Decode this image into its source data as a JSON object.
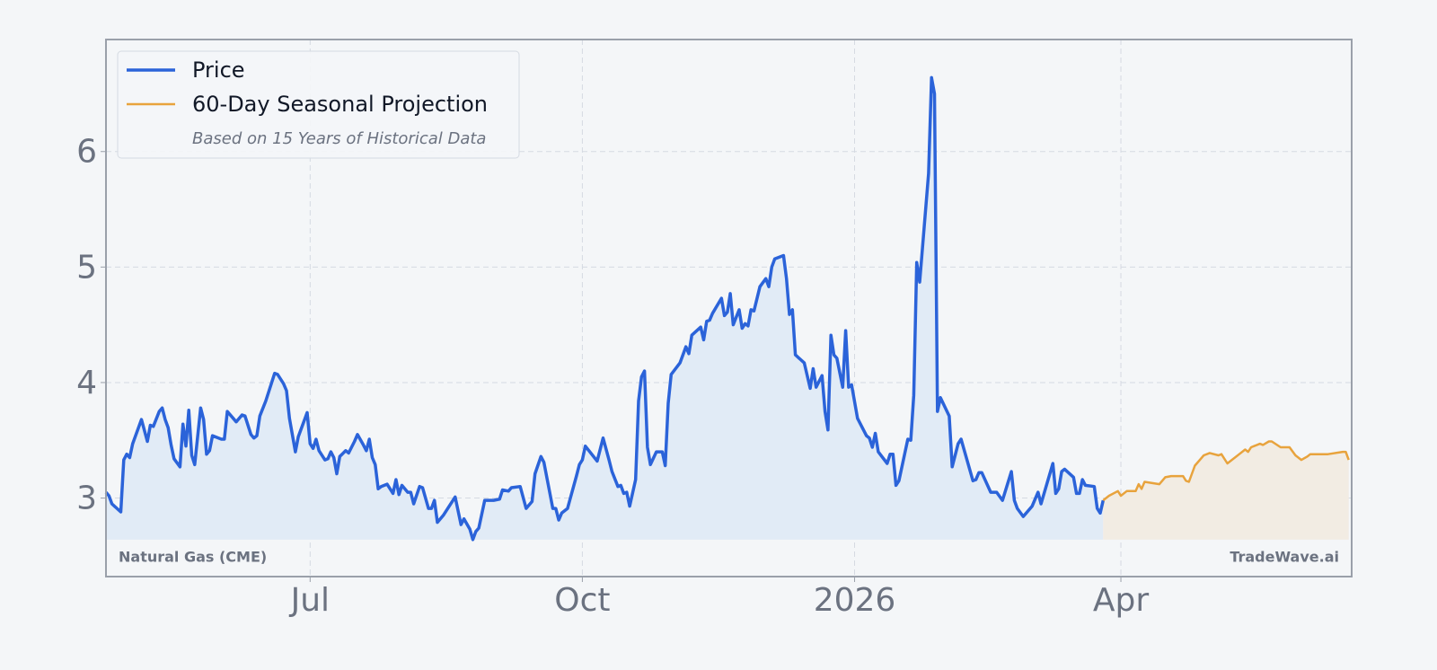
{
  "chart_data": {
    "type": "line",
    "annotations": {
      "left": "Natural Gas (CME)",
      "right": "TradeWave.ai"
    },
    "legend_note": "Based on 15 Years of Historical Data",
    "legend": "upper left",
    "grid": true,
    "xlim": [
      -69,
      352
    ],
    "xticks": [
      {
        "value": 0,
        "label": "Jul"
      },
      {
        "value": 92,
        "label": "Oct"
      },
      {
        "value": 184,
        "label": "2026"
      },
      {
        "value": 274,
        "label": "Apr"
      }
    ],
    "ylim": [
      2.32,
      6.97
    ],
    "yticks": [
      3,
      4,
      5,
      6
    ],
    "series": [
      {
        "name": "Price",
        "color": "#2b63d9",
        "fill": "#e1ebf6",
        "x": [
          -69,
          -68,
          -67,
          -64,
          -63,
          -62,
          -61,
          -60,
          -57,
          -55,
          -54,
          -53,
          -51,
          -50,
          -49,
          -48,
          -47,
          -46,
          -44,
          -43,
          -42,
          -41,
          -40,
          -39,
          -37,
          -36,
          -35,
          -34,
          -33,
          -30,
          -29,
          -28,
          -26,
          -25,
          -23,
          -22,
          -20,
          -19,
          -18,
          -17,
          -15,
          -12,
          -11,
          -9,
          -8,
          -7,
          -5,
          -4,
          -1,
          0,
          1,
          2,
          3,
          5,
          6,
          7,
          8,
          9,
          10,
          12,
          13,
          15,
          16,
          18,
          19,
          20,
          21,
          22,
          23,
          24,
          26,
          28,
          29,
          30,
          31,
          33,
          34,
          35,
          37,
          38,
          40,
          41,
          42,
          43,
          45,
          49,
          51,
          52,
          54,
          55,
          56,
          57,
          59,
          62,
          64,
          65,
          67,
          68,
          71,
          73,
          75,
          76,
          78,
          79,
          82,
          83,
          84,
          85,
          87,
          90,
          91,
          92,
          93,
          97,
          99,
          101,
          102,
          104,
          105,
          106,
          107,
          108,
          110,
          111,
          112,
          113,
          114,
          115,
          117,
          119,
          120,
          121,
          122,
          125,
          127,
          128,
          129,
          132,
          133,
          134,
          135,
          136,
          139,
          140,
          141,
          142,
          143,
          145,
          146,
          147,
          148,
          149,
          150,
          152,
          154,
          155,
          156,
          157,
          160,
          161,
          162,
          163,
          164,
          167,
          169,
          170,
          171,
          173,
          174,
          175,
          176,
          177,
          178,
          180,
          181,
          182,
          183,
          185,
          188,
          189,
          190,
          191,
          192,
          195,
          196,
          197,
          198,
          199,
          202,
          203,
          204,
          205,
          206,
          209,
          210,
          211,
          212,
          213,
          216,
          217,
          219,
          220,
          224,
          225,
          226,
          227,
          230,
          232,
          234,
          237,
          238,
          239,
          241,
          244,
          246,
          247,
          251,
          252,
          253,
          254,
          255,
          258,
          259,
          260,
          261,
          262,
          265,
          266,
          267,
          268
        ],
        "values": [
          3.05,
          3.02,
          2.95,
          2.88,
          3.33,
          3.38,
          3.35,
          3.47,
          3.68,
          3.49,
          3.63,
          3.62,
          3.75,
          3.78,
          3.68,
          3.61,
          3.46,
          3.34,
          3.27,
          3.64,
          3.45,
          3.76,
          3.37,
          3.29,
          3.78,
          3.68,
          3.38,
          3.41,
          3.54,
          3.51,
          3.51,
          3.75,
          3.69,
          3.66,
          3.72,
          3.71,
          3.55,
          3.52,
          3.54,
          3.71,
          3.84,
          4.08,
          4.07,
          3.99,
          3.93,
          3.69,
          3.4,
          3.53,
          3.74,
          3.47,
          3.43,
          3.51,
          3.41,
          3.33,
          3.34,
          3.4,
          3.35,
          3.21,
          3.36,
          3.41,
          3.39,
          3.49,
          3.55,
          3.46,
          3.41,
          3.51,
          3.35,
          3.29,
          3.08,
          3.1,
          3.12,
          3.04,
          3.16,
          3.03,
          3.11,
          3.05,
          3.05,
          2.95,
          3.1,
          3.09,
          2.91,
          2.91,
          2.98,
          2.79,
          2.85,
          3.01,
          2.77,
          2.82,
          2.73,
          2.64,
          2.71,
          2.74,
          2.98,
          2.98,
          2.99,
          3.07,
          3.06,
          3.09,
          3.1,
          2.91,
          2.97,
          3.21,
          3.36,
          3.31,
          2.91,
          2.91,
          2.81,
          2.87,
          2.91,
          3.19,
          3.29,
          3.33,
          3.45,
          3.32,
          3.52,
          3.33,
          3.23,
          3.1,
          3.11,
          3.04,
          3.05,
          2.93,
          3.16,
          3.84,
          4.05,
          4.1,
          3.44,
          3.29,
          3.4,
          3.4,
          3.28,
          3.82,
          4.07,
          4.17,
          4.31,
          4.25,
          4.41,
          4.48,
          4.37,
          4.53,
          4.54,
          4.6,
          4.73,
          4.58,
          4.61,
          4.77,
          4.5,
          4.63,
          4.47,
          4.51,
          4.49,
          4.63,
          4.62,
          4.83,
          4.9,
          4.83,
          5.0,
          5.07,
          5.1,
          4.9,
          4.59,
          4.63,
          4.24,
          4.17,
          3.95,
          4.12,
          3.96,
          4.06,
          3.75,
          3.59,
          4.41,
          4.24,
          4.21,
          3.96,
          4.45,
          3.96,
          3.98,
          3.69,
          3.54,
          3.52,
          3.44,
          3.56,
          3.4,
          3.3,
          3.38,
          3.38,
          3.11,
          3.15,
          3.51,
          3.5,
          3.89,
          5.04,
          4.87,
          5.81,
          6.64,
          6.5,
          3.75,
          3.87,
          3.71,
          3.27,
          3.47,
          3.51,
          3.15,
          3.16,
          3.22,
          3.22,
          3.05,
          3.05,
          2.98,
          3.23,
          2.98,
          2.91,
          2.84,
          2.93,
          3.05,
          2.95,
          3.3,
          3.04,
          3.08,
          3.23,
          3.25,
          3.18,
          3.04,
          3.04,
          3.16,
          3.11,
          3.1,
          2.91,
          2.87,
          2.98
        ]
      },
      {
        "name": "60-Day Seasonal Projection",
        "color": "#e8a33d",
        "fill": "#f2ece3",
        "x": [
          268,
          270,
          273,
          274,
          276,
          279,
          280,
          281,
          282,
          287,
          289,
          291,
          295,
          296,
          297,
          299,
          302,
          304,
          307,
          308,
          310,
          314,
          316,
          317,
          318,
          321,
          322,
          324,
          325,
          328,
          331,
          333,
          335,
          337,
          338,
          341,
          344,
          349,
          350,
          351
        ],
        "values": [
          2.98,
          3.02,
          3.06,
          3.02,
          3.06,
          3.06,
          3.12,
          3.08,
          3.14,
          3.12,
          3.18,
          3.19,
          3.19,
          3.15,
          3.14,
          3.28,
          3.37,
          3.39,
          3.37,
          3.38,
          3.3,
          3.38,
          3.42,
          3.4,
          3.44,
          3.47,
          3.46,
          3.49,
          3.49,
          3.44,
          3.44,
          3.37,
          3.33,
          3.36,
          3.38,
          3.38,
          3.38,
          3.4,
          3.4,
          3.33
        ]
      }
    ]
  }
}
